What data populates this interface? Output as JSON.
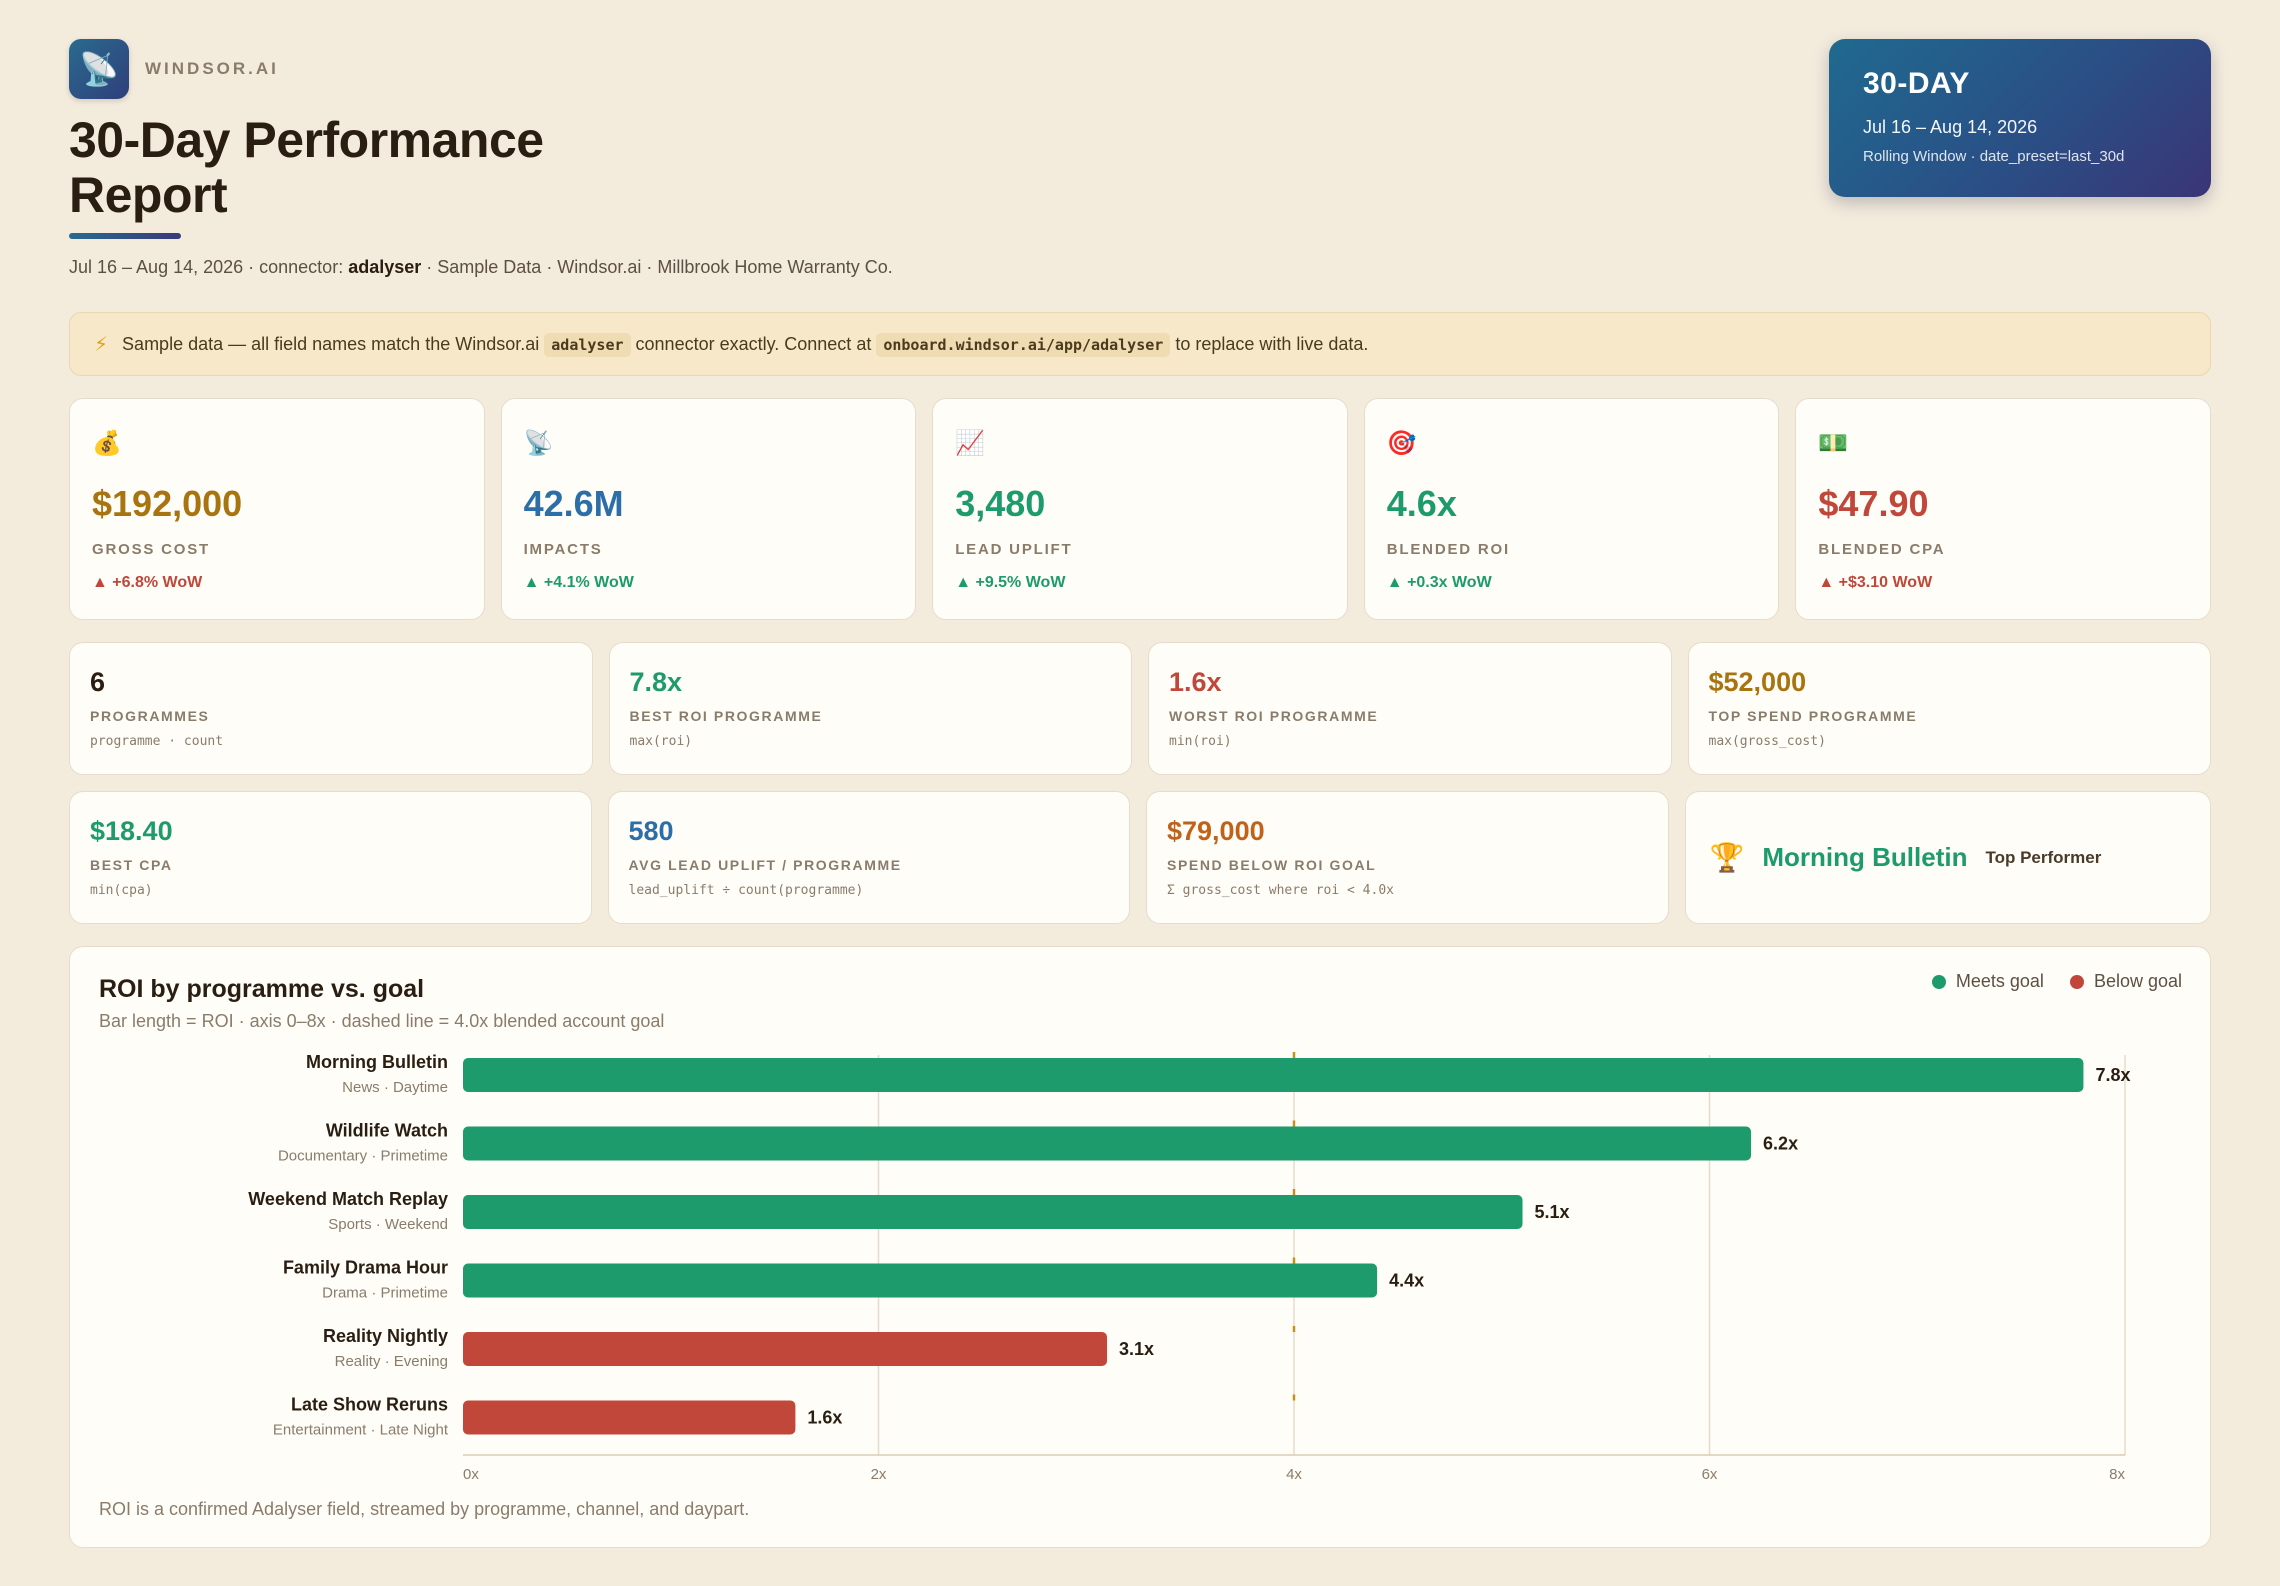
{
  "brand": {
    "name": "WINDSOR.AI",
    "logo_icon": "satellite-dish-icon"
  },
  "header": {
    "title": "30-Day Performance Report",
    "subtitle_prefix": "Jul 16 – Aug 14, 2026 · connector: ",
    "connector": "adalyser",
    "subtitle_suffix": " · Sample Data · Windsor.ai · Millbrook Home Warranty Co."
  },
  "period": {
    "title": "30-DAY",
    "range": "Jul 16 – Aug 14, 2026",
    "sub": "Rolling Window · date_preset=last_30d"
  },
  "notice": {
    "icon": "lightning-icon",
    "text1": "Sample data — all field names match the Windsor.ai",
    "code1": "adalyser",
    "text2": "connector exactly. Connect at",
    "code2": "onboard.windsor.ai/app/adalyser",
    "text3": "to replace with live data."
  },
  "kpis": [
    {
      "icon": "💰",
      "icon_name": "money-bag-icon",
      "value": "$192,000",
      "label": "GROSS COST",
      "delta": "▲ +6.8% WoW",
      "value_color": "#a8740f",
      "delta_color": "#c0473a"
    },
    {
      "icon": "📡",
      "icon_name": "satellite-dish-icon",
      "value": "42.6M",
      "label": "IMPACTS",
      "delta": "▲ +4.1% WoW",
      "value_color": "#2b6ea8",
      "delta_color": "#1e9b6c"
    },
    {
      "icon": "📈",
      "icon_name": "chart-up-icon",
      "value": "3,480",
      "label": "LEAD UPLIFT",
      "delta": "▲ +9.5% WoW",
      "value_color": "#1e9b6c",
      "delta_color": "#1e9b6c"
    },
    {
      "icon": "🎯",
      "icon_name": "target-icon",
      "value": "4.6x",
      "label": "BLENDED ROI",
      "delta": "▲ +0.3x WoW",
      "value_color": "#1e9b6c",
      "delta_color": "#1e9b6c"
    },
    {
      "icon": "💵",
      "icon_name": "dollar-bill-icon",
      "value": "$47.90",
      "label": "BLENDED CPA",
      "delta": "▲ +$3.10 WoW",
      "value_color": "#c0473a",
      "delta_color": "#c0473a"
    }
  ],
  "stats_row1": [
    {
      "value": "6",
      "label": "PROGRAMMES",
      "formula": "programme · count",
      "color": "#2a1e12"
    },
    {
      "value": "7.8x",
      "label": "BEST ROI PROGRAMME",
      "formula": "max(roi)",
      "color": "#1e9b6c"
    },
    {
      "value": "1.6x",
      "label": "WORST ROI PROGRAMME",
      "formula": "min(roi)",
      "color": "#c0473a"
    },
    {
      "value": "$52,000",
      "label": "TOP SPEND PROGRAMME",
      "formula": "max(gross_cost)",
      "color": "#a8740f"
    }
  ],
  "stats_row2": [
    {
      "value": "$18.40",
      "label": "BEST CPA",
      "formula": "min(cpa)",
      "color": "#1e9b6c"
    },
    {
      "value": "580",
      "label": "AVG LEAD UPLIFT / PROGRAMME",
      "formula": "lead_uplift ÷ count(programme)",
      "color": "#2b6ea8"
    },
    {
      "value": "$79,000",
      "label": "SPEND BELOW ROI GOAL",
      "formula": "Σ gross_cost where roi < 4.0x",
      "color": "#c0621a"
    }
  ],
  "top_performer": {
    "icon": "🏆",
    "icon_name": "trophy-icon",
    "name": "Morning Bulletin",
    "tag": "Top Performer"
  },
  "chart": {
    "title": "ROI by programme vs. goal",
    "subtitle": "Bar length = ROI · axis 0–8x · dashed line = 4.0x blended account goal",
    "legend_meets": "Meets goal",
    "legend_below": "Below goal",
    "color_meets": "#1e9b6c",
    "color_below": "#c0473a",
    "footnote": "ROI is a confirmed Adalyser field, streamed by programme, channel, and daypart."
  },
  "chart_data": {
    "type": "bar",
    "orientation": "horizontal",
    "categories": [
      "Morning Bulletin",
      "Wildlife Watch",
      "Weekend Match Replay",
      "Family Drama Hour",
      "Reality Nightly",
      "Late Show Reruns"
    ],
    "category_subtitles": [
      "News · Daytime",
      "Documentary · Primetime",
      "Sports · Weekend",
      "Drama · Primetime",
      "Reality · Evening",
      "Entertainment · Late Night"
    ],
    "values": [
      7.8,
      6.2,
      5.1,
      4.4,
      3.1,
      1.6
    ],
    "value_labels": [
      "7.8x",
      "6.2x",
      "5.1x",
      "4.4x",
      "3.1x",
      "1.6x"
    ],
    "status": [
      "meets",
      "meets",
      "meets",
      "meets",
      "below",
      "below"
    ],
    "xlim": [
      0,
      8
    ],
    "xticks": [
      0,
      2,
      4,
      6,
      8
    ],
    "xtick_labels": [
      "0x",
      "2x",
      "4x",
      "6x",
      "8x"
    ],
    "goal": 4.0,
    "grid": true
  }
}
